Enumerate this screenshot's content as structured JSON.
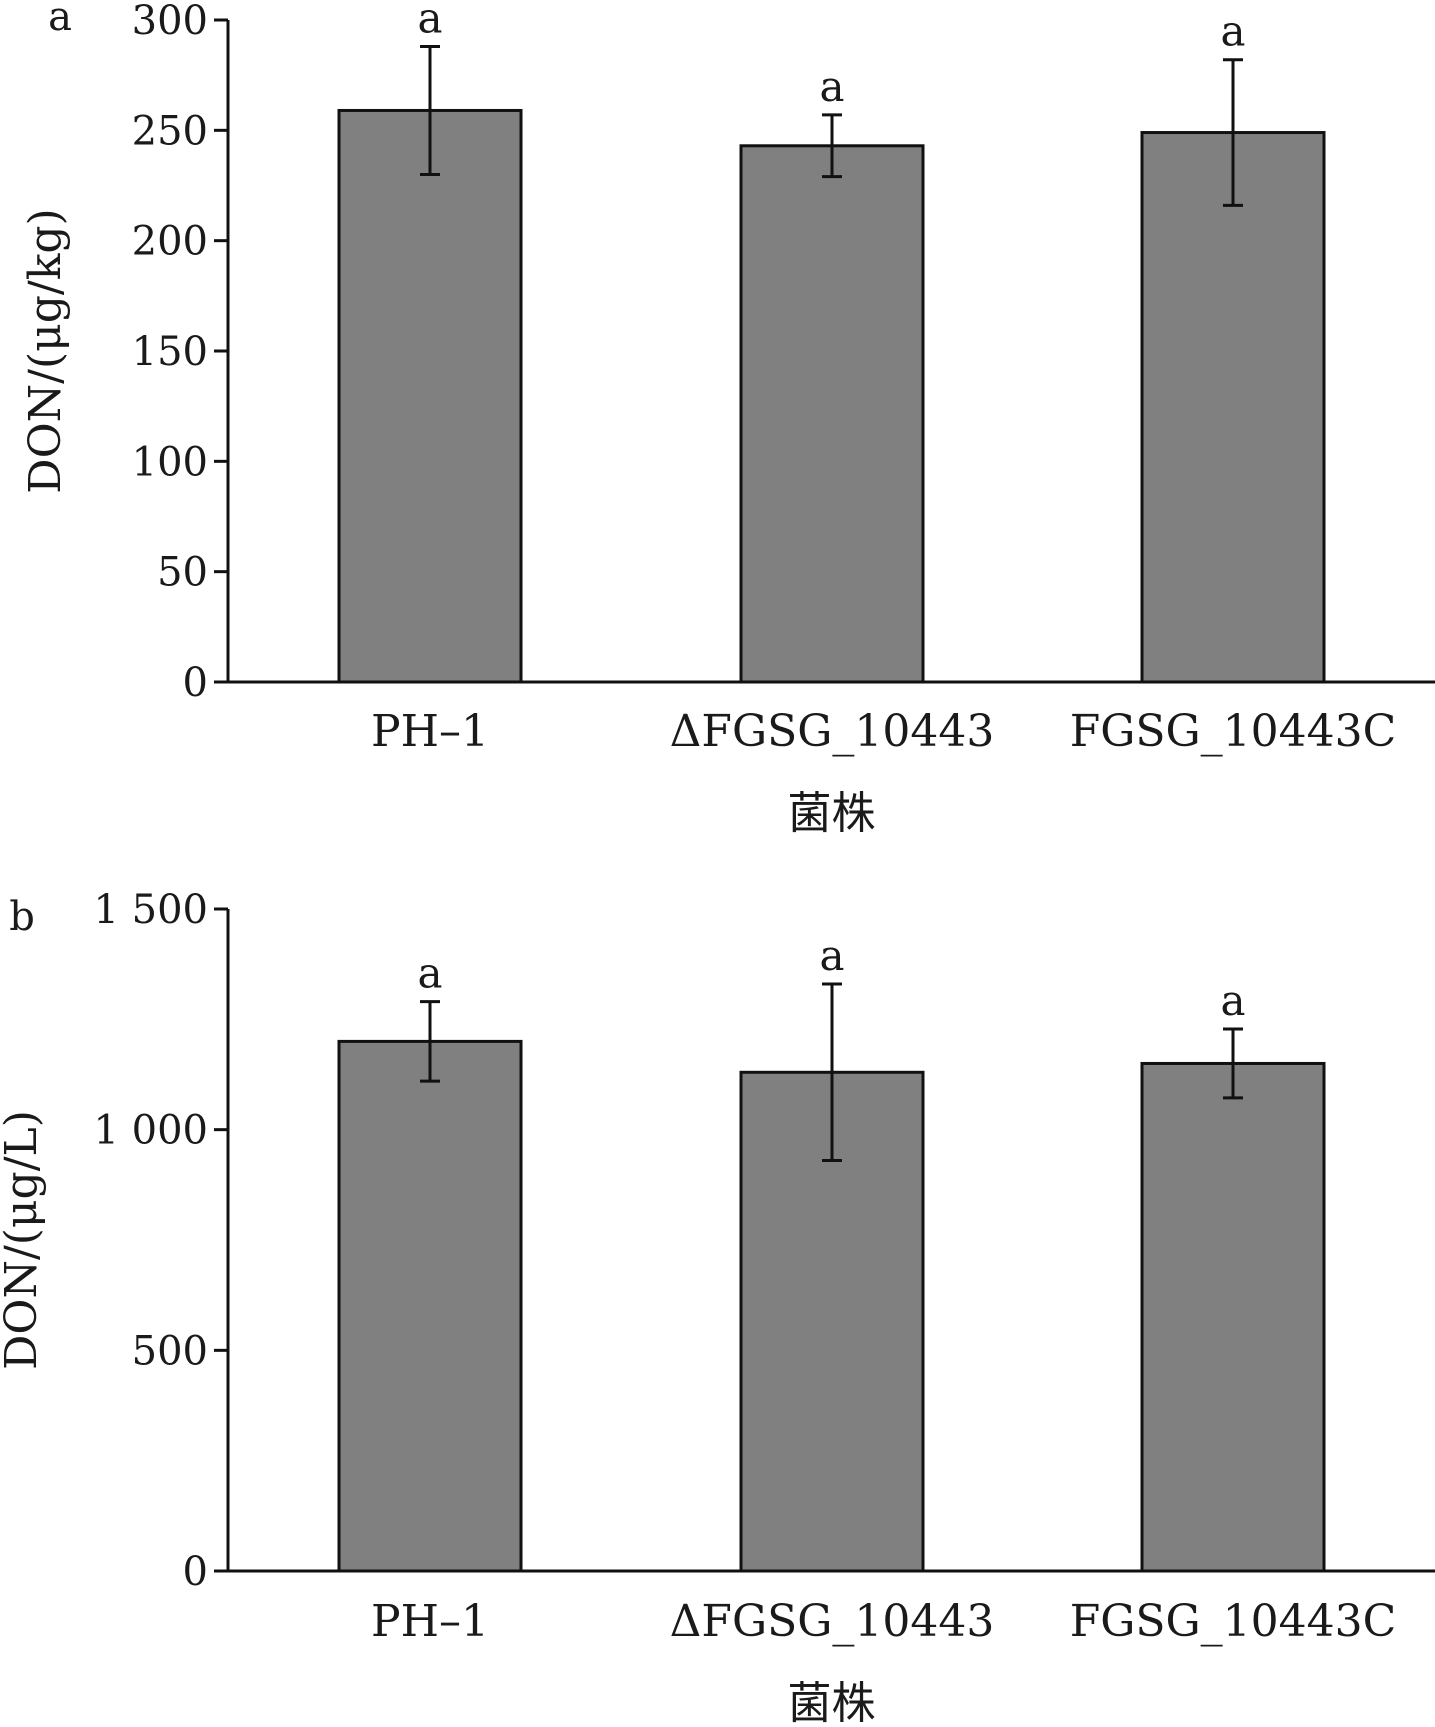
{
  "chart_data": [
    {
      "panel_label": "a",
      "type": "bar",
      "categories": [
        "PH–1",
        "ΔFGSG_10443",
        "FGSG_10443C"
      ],
      "values": [
        259,
        243,
        249
      ],
      "errors": [
        29,
        14,
        33
      ],
      "significance": [
        "a",
        "a",
        "a"
      ],
      "ylabel": "DON/(μg/kg)",
      "xlabel": "菌株",
      "ylim": [
        0,
        300
      ],
      "yticks": [
        0,
        50,
        100,
        150,
        200,
        250,
        300
      ],
      "ytick_labels": [
        "0",
        "50",
        "100",
        "150",
        "200",
        "250",
        "300"
      ],
      "bar_color": "#808080",
      "grid": false
    },
    {
      "panel_label": "b",
      "type": "bar",
      "categories": [
        "PH–1",
        "ΔFGSG_10443",
        "FGSG_10443C"
      ],
      "values": [
        1200,
        1130,
        1150
      ],
      "errors": [
        90,
        200,
        78
      ],
      "significance": [
        "a",
        "a",
        "a"
      ],
      "ylabel": "DON/(μg/L)",
      "xlabel": "菌株",
      "ylim": [
        0,
        1500
      ],
      "yticks": [
        0,
        500,
        1000,
        1500
      ],
      "ytick_labels": [
        "0",
        "500",
        "1 000",
        "1 500"
      ],
      "bar_color": "#808080",
      "grid": false
    }
  ]
}
